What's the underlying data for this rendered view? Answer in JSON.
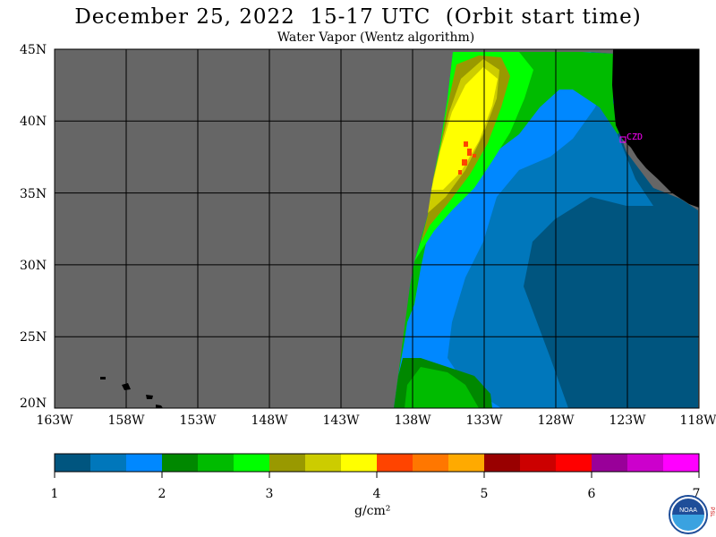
{
  "title": "December 25, 2022  15-17 UTC  (Orbit start time)",
  "subtitle": "Water Vapor (Wentz algorithm)",
  "map": {
    "background_color": "#666666",
    "land_color": "#000000",
    "grid_color": "#000000",
    "lat_labels": [
      "45N",
      "40N",
      "35N",
      "30N",
      "25N",
      "20N"
    ],
    "lon_labels": [
      "163W",
      "158W",
      "153W",
      "148W",
      "143W",
      "138W",
      "133W",
      "128W",
      "123W",
      "118W"
    ],
    "station_label": "CZD",
    "station_color": "#ff00ff"
  },
  "colorbar": {
    "colors": [
      "#00557f",
      "#0077bb",
      "#0088ff",
      "#008800",
      "#00bb00",
      "#00ff00",
      "#999900",
      "#cccc00",
      "#ffff00",
      "#ff4400",
      "#ff7700",
      "#ffaa00",
      "#990000",
      "#cc0000",
      "#ff0000",
      "#990099",
      "#cc00cc",
      "#ff00ff"
    ],
    "tick_labels": [
      "1",
      "2",
      "3",
      "4",
      "5",
      "6",
      "7"
    ],
    "unit_label": "g/cm²"
  },
  "logo": {
    "text": "NOAA",
    "side_text": "PSL"
  }
}
